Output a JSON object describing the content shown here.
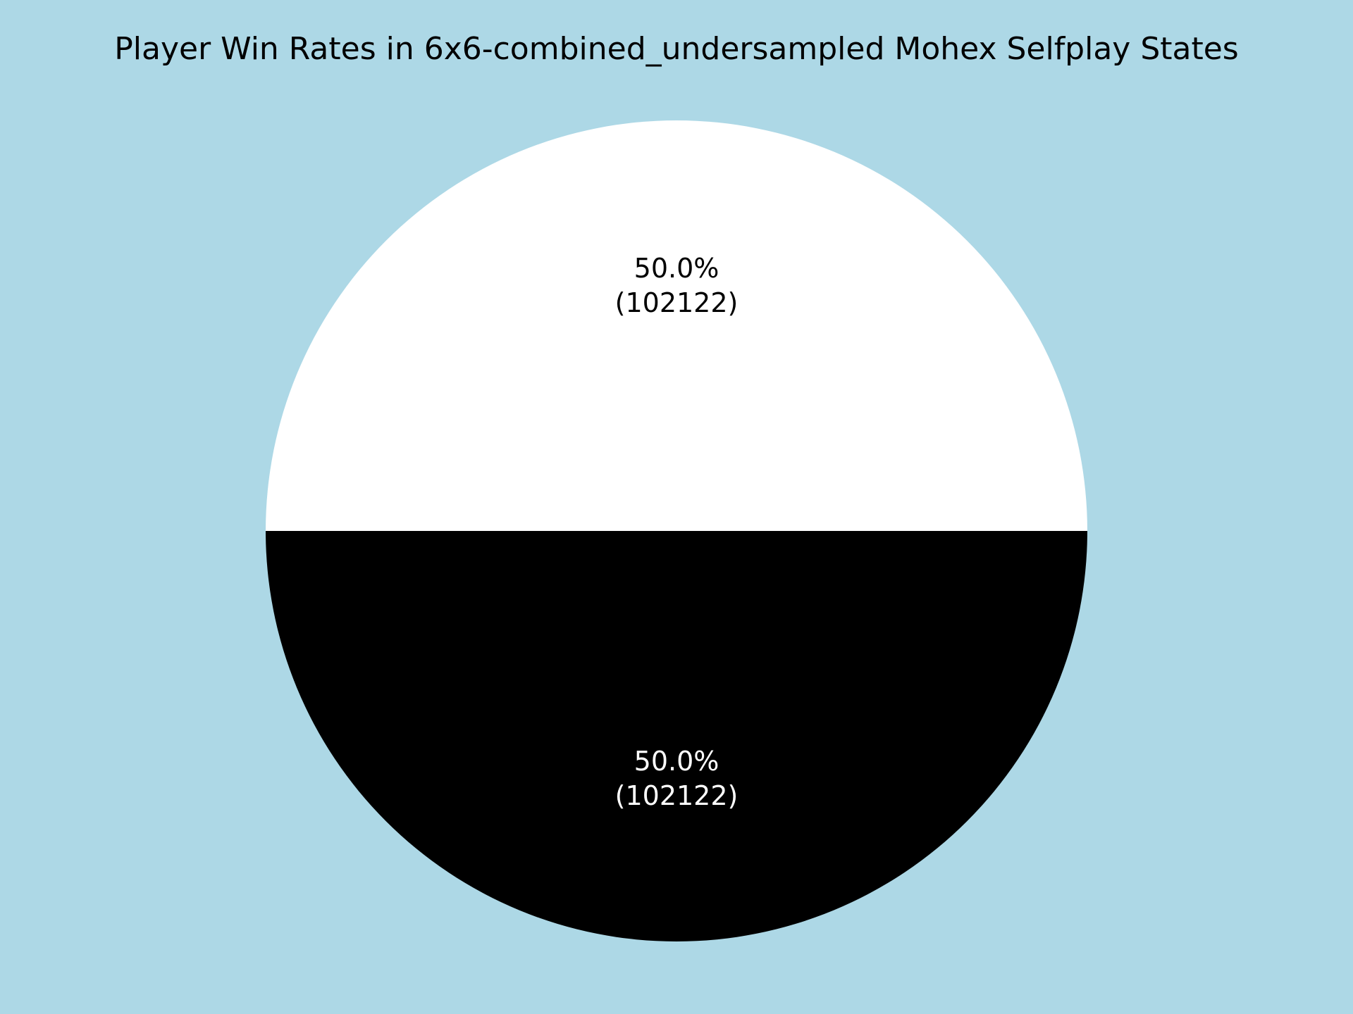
{
  "chart_data": {
    "type": "pie",
    "title": "Player Win Rates in 6x6-combined_undersampled Mohex Selfplay States",
    "slices": [
      {
        "value": 102122,
        "percent_label": "50.0%",
        "count_label": "(102122)",
        "color": "#ffffff",
        "label_color": "#000000"
      },
      {
        "value": 102122,
        "percent_label": "50.0%",
        "count_label": "(102122)",
        "color": "#000000",
        "label_color": "#ffffff"
      }
    ],
    "start_angle_deg": 0,
    "direction": "counterclockwise",
    "background_color": "#add8e6"
  }
}
